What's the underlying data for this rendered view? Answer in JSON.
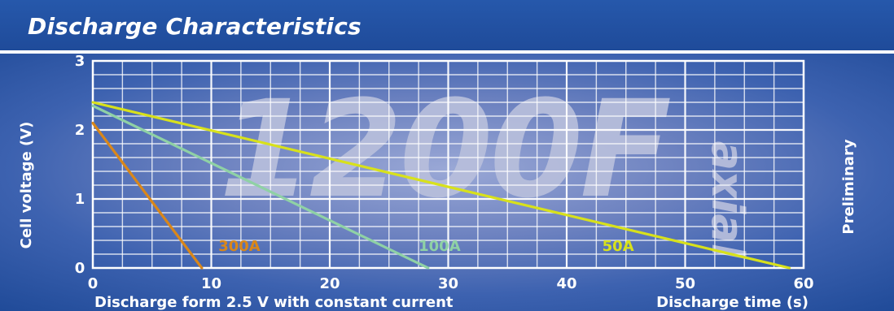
{
  "page": {
    "title": "Discharge Characteristics"
  },
  "watermark": {
    "main": "1200F",
    "sub": "axial"
  },
  "colors": {
    "header": "#2356a8",
    "background": "#1f4a98",
    "grid": "#ffffff",
    "series_300A": "#d9871a",
    "series_100A": "#8fd1a5",
    "series_50A": "#d8e11b",
    "watermark": "#b8bfdc"
  },
  "chart_data": {
    "type": "line",
    "title": "Discharge Characteristics",
    "xlabel": "Discharge time (s)",
    "ylabel": "Cell voltage (V)",
    "xlim": [
      0,
      60
    ],
    "ylim": [
      0,
      3
    ],
    "xticks": [
      0,
      10,
      20,
      30,
      40,
      50,
      60
    ],
    "yticks": [
      0,
      1,
      2,
      3
    ],
    "grid": true,
    "note_left": "Discharge form 2.5 V with constant current",
    "note_right": "Preliminary",
    "series": [
      {
        "name": "300A",
        "color": "#d9871a",
        "x": [
          0,
          9.2
        ],
        "y": [
          2.1,
          0
        ],
        "label_x": 10.6,
        "label_y": 0.25
      },
      {
        "name": "100A",
        "color": "#8fd1a5",
        "x": [
          0,
          28.3
        ],
        "y": [
          2.35,
          0
        ],
        "label_x": 27.5,
        "label_y": 0.25
      },
      {
        "name": "50A",
        "color": "#d8e11b",
        "x": [
          0,
          58.8
        ],
        "y": [
          2.4,
          0
        ],
        "label_x": 43.0,
        "label_y": 0.25
      }
    ]
  }
}
